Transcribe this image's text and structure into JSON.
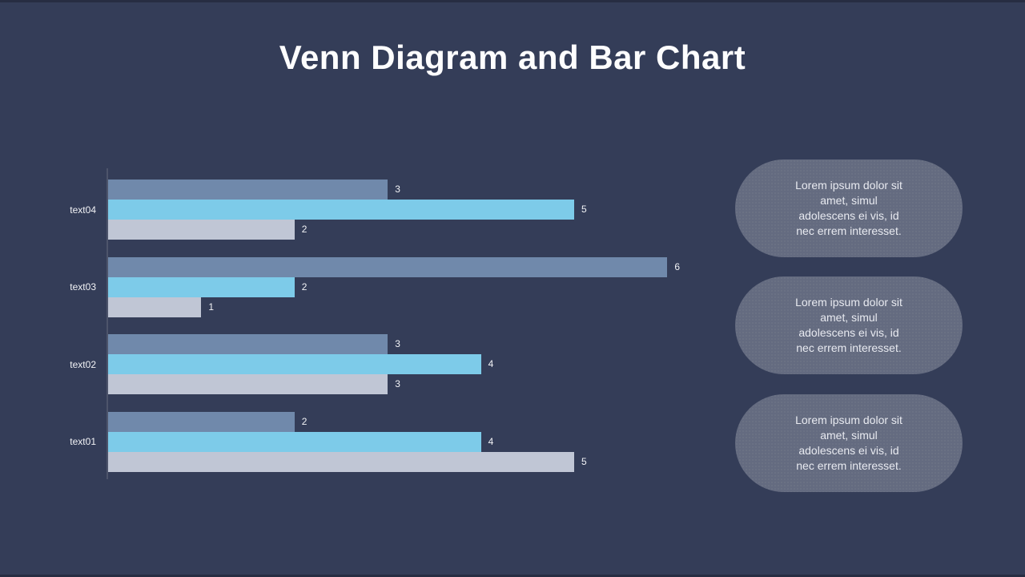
{
  "slide": {
    "title": "Venn Diagram and Bar Chart",
    "background_color": "#343d58",
    "title_color": "#fdfdfe"
  },
  "chart_data": {
    "type": "bar",
    "orientation": "horizontal",
    "title": "",
    "xlabel": "",
    "ylabel": "",
    "xlim": [
      0,
      6
    ],
    "grid": false,
    "legend": false,
    "value_labels": true,
    "category_order_note": "listed top-to-bottom as displayed",
    "categories": [
      "text04",
      "text03",
      "text02",
      "text01"
    ],
    "series": [
      {
        "name": "series-1",
        "color": "#7089ab",
        "values": [
          3,
          6,
          3,
          2
        ]
      },
      {
        "name": "series-2",
        "color": "#7dcbe9",
        "values": [
          5,
          2,
          4,
          4
        ]
      },
      {
        "name": "series-3",
        "color": "#c0c6d5",
        "values": [
          2,
          1,
          3,
          5
        ]
      }
    ],
    "label_color": "#f2f3f6",
    "axis_color": "#4d546b"
  },
  "callouts": {
    "fill_color": "#646b80",
    "text_color": "#e8eaf0",
    "items": [
      {
        "lines": [
          "Lorem ipsum dolor sit",
          "amet, simul",
          "adolescens ei vis, id",
          "nec errem interesset."
        ]
      },
      {
        "lines": [
          "Lorem ipsum dolor sit",
          "amet, simul",
          "adolescens ei vis, id",
          "nec errem interesset."
        ]
      },
      {
        "lines": [
          "Lorem ipsum dolor sit",
          "amet, simul",
          "adolescens ei vis, id",
          "nec errem interesset."
        ]
      }
    ]
  }
}
